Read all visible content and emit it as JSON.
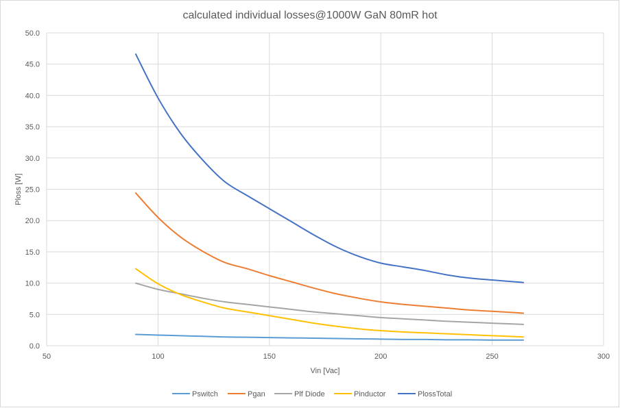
{
  "chart_data": {
    "type": "line",
    "title": "calculated individual losses@1000W  GaN 80mR hot",
    "xlabel": "Vin [Vac]",
    "ylabel": "Ploss [W]",
    "xlim": [
      50,
      300
    ],
    "ylim": [
      0,
      50
    ],
    "x_ticks": [
      50,
      100,
      150,
      200,
      250,
      300
    ],
    "x_tick_labels": [
      "50",
      "100",
      "150",
      "200",
      "250",
      "300"
    ],
    "y_ticks": [
      0,
      5,
      10,
      15,
      20,
      25,
      30,
      35,
      40,
      45,
      50
    ],
    "y_tick_labels": [
      "0.0",
      "5.0",
      "10.0",
      "15.0",
      "20.0",
      "25.0",
      "30.0",
      "35.0",
      "40.0",
      "45.0",
      "50.0"
    ],
    "grid": true,
    "legend_position": "bottom",
    "x": [
      90,
      100,
      110,
      120,
      130,
      140,
      150,
      160,
      170,
      180,
      190,
      200,
      210,
      220,
      230,
      240,
      250,
      264
    ],
    "series": [
      {
        "name": "Pswitch",
        "color": "#5B9BD5",
        "values": [
          1.8,
          1.7,
          1.6,
          1.5,
          1.4,
          1.35,
          1.3,
          1.25,
          1.2,
          1.15,
          1.1,
          1.05,
          1.0,
          1.0,
          0.95,
          0.95,
          0.9,
          0.9
        ]
      },
      {
        "name": "Pgan",
        "color": "#ED7D31",
        "values": [
          24.4,
          20.5,
          17.4,
          15.1,
          13.3,
          12.3,
          11.2,
          10.2,
          9.2,
          8.3,
          7.6,
          7.0,
          6.6,
          6.3,
          6.0,
          5.7,
          5.5,
          5.2
        ]
      },
      {
        "name": "Plf Diode",
        "color": "#A5A5A5",
        "values": [
          10.0,
          9.0,
          8.3,
          7.6,
          7.0,
          6.6,
          6.2,
          5.8,
          5.4,
          5.1,
          4.8,
          4.5,
          4.3,
          4.1,
          3.9,
          3.75,
          3.6,
          3.4
        ]
      },
      {
        "name": "Pinductor",
        "color": "#FFC000",
        "values": [
          12.3,
          9.9,
          8.2,
          7.0,
          6.0,
          5.4,
          4.8,
          4.2,
          3.6,
          3.1,
          2.7,
          2.4,
          2.2,
          2.05,
          1.9,
          1.75,
          1.6,
          1.4
        ]
      },
      {
        "name": "PlossTotal",
        "color": "#4472C4",
        "values": [
          46.6,
          39.6,
          34.0,
          29.7,
          26.2,
          24.0,
          21.9,
          19.8,
          17.7,
          15.8,
          14.3,
          13.2,
          12.6,
          12.0,
          11.3,
          10.8,
          10.5,
          10.1
        ]
      }
    ]
  }
}
